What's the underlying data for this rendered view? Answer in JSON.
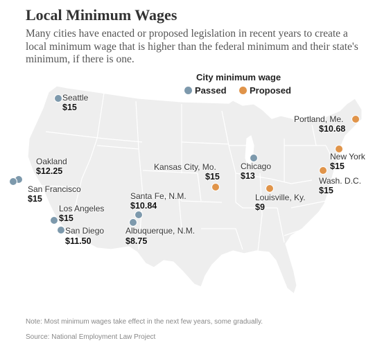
{
  "header": {
    "title": "Local Minimum Wages",
    "subtitle": "Many cities have enacted or proposed legislation in recent years to create a local minimum wage that is higher than the federal minimum and their state's minimum, if there is one."
  },
  "legend": {
    "title": "City minimum wage",
    "passed_label": "Passed",
    "proposed_label": "Proposed",
    "passed_color": "#7d99ac",
    "proposed_color": "#e0944a"
  },
  "cities": [
    {
      "id": "seattle",
      "name": "Seattle",
      "wage": "$15",
      "status": "passed"
    },
    {
      "id": "oakland",
      "name": "Oakland",
      "wage": "$12.25",
      "status": "passed"
    },
    {
      "id": "san-francisco",
      "name": "San Francisco",
      "wage": "$15",
      "status": "passed"
    },
    {
      "id": "los-angeles",
      "name": "Los Angeles",
      "wage": "$15",
      "status": "passed"
    },
    {
      "id": "san-diego",
      "name": "San Diego",
      "wage": "$11.50",
      "status": "passed"
    },
    {
      "id": "santa-fe",
      "name": "Santa Fe, N.M.",
      "wage": "$10.84",
      "status": "passed"
    },
    {
      "id": "albuquerque",
      "name": "Albuquerque, N.M.",
      "wage": "$8.75",
      "status": "passed"
    },
    {
      "id": "kansas-city",
      "name": "Kansas City, Mo.",
      "wage": "$15",
      "status": "proposed"
    },
    {
      "id": "chicago",
      "name": "Chicago",
      "wage": "$13",
      "status": "passed"
    },
    {
      "id": "louisville",
      "name": "Louisville, Ky.",
      "wage": "$9",
      "status": "proposed"
    },
    {
      "id": "portland-me",
      "name": "Portland, Me.",
      "wage": "$10.68",
      "status": "proposed"
    },
    {
      "id": "new-york",
      "name": "New York",
      "wage": "$15",
      "status": "proposed"
    },
    {
      "id": "washington-dc",
      "name": "Wash. D.C.",
      "wage": "$15",
      "status": "proposed"
    }
  ],
  "footer": {
    "note": "Note: Most minimum wages take effect in the next few years, some gradually.",
    "source": "Source: National Employment Law Project"
  }
}
